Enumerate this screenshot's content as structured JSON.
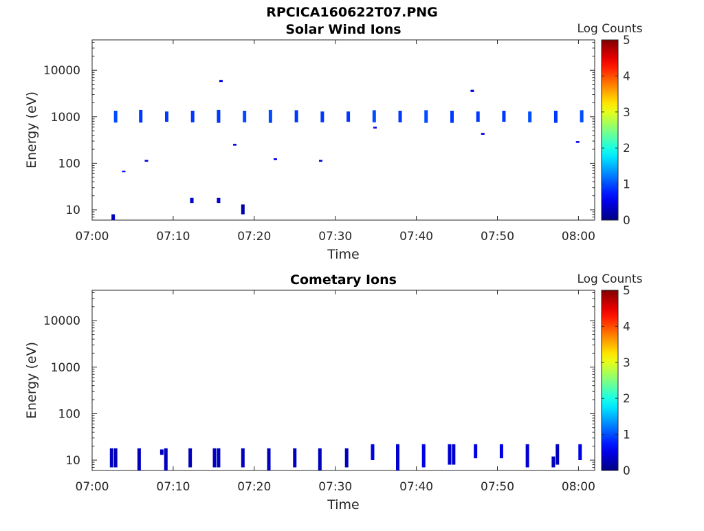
{
  "figure": {
    "title": "RPCICA160622T07.PNG"
  },
  "chart_data": [
    {
      "type": "heatmap",
      "title": "Solar Wind Ions",
      "xlabel": "Time",
      "ylabel": "Energy (eV)",
      "x_ticks": [
        "07:00",
        "07:10",
        "07:20",
        "07:30",
        "07:40",
        "07:50",
        "08:00"
      ],
      "x_range_minutes": [
        0,
        62
      ],
      "y_ticks": [
        10,
        100,
        1000,
        10000
      ],
      "y_tick_labels": [
        "10",
        "100",
        "1000",
        "10000"
      ],
      "y_range": [
        6,
        45000
      ],
      "y_scale": "log",
      "colorbar": {
        "label": "Log Counts",
        "ticks": [
          "0",
          "1",
          "2",
          "3",
          "4",
          "5"
        ],
        "range": [
          0,
          5
        ]
      },
      "cells": [
        {
          "t": 2.9,
          "e0": 750,
          "e1": 1350,
          "v": 1.0
        },
        {
          "t": 6.0,
          "e0": 750,
          "e1": 1400,
          "v": 0.9
        },
        {
          "t": 9.2,
          "e0": 780,
          "e1": 1300,
          "v": 0.9
        },
        {
          "t": 12.4,
          "e0": 760,
          "e1": 1350,
          "v": 0.9
        },
        {
          "t": 15.6,
          "e0": 740,
          "e1": 1400,
          "v": 0.9
        },
        {
          "t": 18.8,
          "e0": 760,
          "e1": 1350,
          "v": 1.0
        },
        {
          "t": 22.0,
          "e0": 740,
          "e1": 1400,
          "v": 1.0
        },
        {
          "t": 25.2,
          "e0": 760,
          "e1": 1380,
          "v": 0.9
        },
        {
          "t": 28.4,
          "e0": 760,
          "e1": 1300,
          "v": 0.9
        },
        {
          "t": 31.6,
          "e0": 780,
          "e1": 1300,
          "v": 0.9
        },
        {
          "t": 34.8,
          "e0": 760,
          "e1": 1380,
          "v": 1.0
        },
        {
          "t": 38.0,
          "e0": 760,
          "e1": 1350,
          "v": 0.9
        },
        {
          "t": 41.2,
          "e0": 740,
          "e1": 1380,
          "v": 1.0
        },
        {
          "t": 44.4,
          "e0": 740,
          "e1": 1350,
          "v": 0.9
        },
        {
          "t": 47.6,
          "e0": 780,
          "e1": 1300,
          "v": 0.9
        },
        {
          "t": 50.8,
          "e0": 780,
          "e1": 1350,
          "v": 0.9
        },
        {
          "t": 54.0,
          "e0": 760,
          "e1": 1300,
          "v": 1.0
        },
        {
          "t": 57.2,
          "e0": 740,
          "e1": 1350,
          "v": 0.9
        },
        {
          "t": 60.4,
          "e0": 760,
          "e1": 1380,
          "v": 1.0
        },
        {
          "t": 2.6,
          "e0": 6,
          "e1": 8,
          "v": 0.3
        },
        {
          "t": 12.3,
          "e0": 14,
          "e1": 18,
          "v": 0.4
        },
        {
          "t": 15.6,
          "e0": 14,
          "e1": 18,
          "v": 0.4
        },
        {
          "t": 18.6,
          "e0": 8,
          "e1": 13,
          "v": 0.2
        },
        {
          "t": 3.9,
          "e0": 65,
          "e1": 69,
          "v": 0.6
        },
        {
          "t": 6.7,
          "e0": 108,
          "e1": 118,
          "v": 0.4
        },
        {
          "t": 15.9,
          "e0": 5600,
          "e1": 6200,
          "v": 0.5
        },
        {
          "t": 17.6,
          "e0": 240,
          "e1": 262,
          "v": 0.5
        },
        {
          "t": 22.6,
          "e0": 117,
          "e1": 128,
          "v": 0.5
        },
        {
          "t": 28.2,
          "e0": 108,
          "e1": 118,
          "v": 0.4
        },
        {
          "t": 34.9,
          "e0": 560,
          "e1": 610,
          "v": 0.5
        },
        {
          "t": 46.9,
          "e0": 3400,
          "e1": 3800,
          "v": 0.5
        },
        {
          "t": 48.2,
          "e0": 410,
          "e1": 450,
          "v": 0.5
        },
        {
          "t": 59.9,
          "e0": 275,
          "e1": 300,
          "v": 0.5
        }
      ]
    },
    {
      "type": "heatmap",
      "title": "Cometary Ions",
      "xlabel": "Time",
      "ylabel": "Energy (eV)",
      "x_ticks": [
        "07:00",
        "07:10",
        "07:20",
        "07:30",
        "07:40",
        "07:50",
        "08:00"
      ],
      "x_range_minutes": [
        0,
        62
      ],
      "y_ticks": [
        10,
        100,
        1000,
        10000
      ],
      "y_tick_labels": [
        "10",
        "100",
        "1000",
        "10000"
      ],
      "y_range": [
        6,
        45000
      ],
      "y_scale": "log",
      "colorbar": {
        "label": "Log Counts",
        "ticks": [
          "0",
          "1",
          "2",
          "3",
          "4",
          "5"
        ],
        "range": [
          0,
          5
        ]
      },
      "cells": [
        {
          "t": 2.4,
          "e0": 7,
          "e1": 18,
          "v": 0.3
        },
        {
          "t": 2.9,
          "e0": 7,
          "e1": 18,
          "v": 0.3
        },
        {
          "t": 5.8,
          "e0": 6,
          "e1": 18,
          "v": 0.3
        },
        {
          "t": 8.6,
          "e0": 13,
          "e1": 17,
          "v": 0.3
        },
        {
          "t": 9.1,
          "e0": 6,
          "e1": 18,
          "v": 0.3
        },
        {
          "t": 12.1,
          "e0": 7,
          "e1": 18,
          "v": 0.3
        },
        {
          "t": 15.1,
          "e0": 7,
          "e1": 18,
          "v": 0.3
        },
        {
          "t": 15.6,
          "e0": 7,
          "e1": 18,
          "v": 0.3
        },
        {
          "t": 18.6,
          "e0": 7,
          "e1": 18,
          "v": 0.3
        },
        {
          "t": 21.8,
          "e0": 6,
          "e1": 18,
          "v": 0.3
        },
        {
          "t": 25.0,
          "e0": 7,
          "e1": 18,
          "v": 0.3
        },
        {
          "t": 28.1,
          "e0": 6,
          "e1": 18,
          "v": 0.3
        },
        {
          "t": 31.4,
          "e0": 7,
          "e1": 18,
          "v": 0.3
        },
        {
          "t": 34.6,
          "e0": 10,
          "e1": 22,
          "v": 0.5
        },
        {
          "t": 37.7,
          "e0": 6,
          "e1": 22,
          "v": 0.4
        },
        {
          "t": 40.9,
          "e0": 7,
          "e1": 22,
          "v": 0.5
        },
        {
          "t": 44.1,
          "e0": 8,
          "e1": 22,
          "v": 0.4
        },
        {
          "t": 44.6,
          "e0": 8,
          "e1": 22,
          "v": 0.4
        },
        {
          "t": 47.3,
          "e0": 11,
          "e1": 22,
          "v": 0.5
        },
        {
          "t": 50.5,
          "e0": 11,
          "e1": 22,
          "v": 0.5
        },
        {
          "t": 53.7,
          "e0": 7,
          "e1": 22,
          "v": 0.4
        },
        {
          "t": 56.9,
          "e0": 7,
          "e1": 12,
          "v": 0.3
        },
        {
          "t": 57.4,
          "e0": 8,
          "e1": 22,
          "v": 0.3
        },
        {
          "t": 60.2,
          "e0": 10,
          "e1": 22,
          "v": 0.5
        }
      ]
    }
  ]
}
